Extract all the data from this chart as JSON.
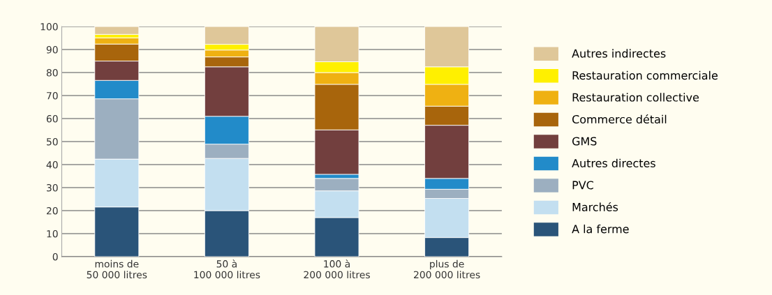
{
  "chart_data": {
    "type": "bar",
    "stacked": true,
    "categories": [
      "moins de\n50 000 litres",
      "50 à\n100 000 litres",
      "100 à\n200 000 litres",
      "plus de\n200 000 litres"
    ],
    "series": [
      {
        "name": "A la ferme",
        "color": "#2a5479",
        "values": [
          21.6,
          20,
          17,
          8.3
        ]
      },
      {
        "name": "Marchés",
        "color": "#c3dff0",
        "values": [
          20.8,
          22.7,
          11.6,
          17
        ]
      },
      {
        "name": "PVC",
        "color": "#9cafc0",
        "values": [
          26.2,
          6.2,
          5.4,
          4
        ]
      },
      {
        "name": "Autres directes",
        "color": "#228bc9",
        "values": [
          8,
          12.1,
          1.8,
          4.7
        ]
      },
      {
        "name": "GMS",
        "color": "#723f3e",
        "values": [
          8.4,
          21.5,
          19.3,
          23.1
        ]
      },
      {
        "name": "Commerce détail",
        "color": "#a8650c",
        "values": [
          7.4,
          4.3,
          19.8,
          8.3
        ]
      },
      {
        "name": "Restauration collective",
        "color": "#efb112",
        "values": [
          2.7,
          3,
          5.1,
          9.5
        ]
      },
      {
        "name": "Restauration commerciale",
        "color": "#fff000",
        "values": [
          1.5,
          2.5,
          4.7,
          7.6
        ]
      },
      {
        "name": "Autres indirectes",
        "color": "#dfc799",
        "values": [
          3.4,
          7.7,
          15.3,
          17.5
        ]
      }
    ],
    "ylim": [
      0,
      100
    ],
    "yticks": [
      0,
      10,
      20,
      30,
      40,
      50,
      60,
      70,
      80,
      90,
      100
    ],
    "grid": "y",
    "legend": "right"
  }
}
